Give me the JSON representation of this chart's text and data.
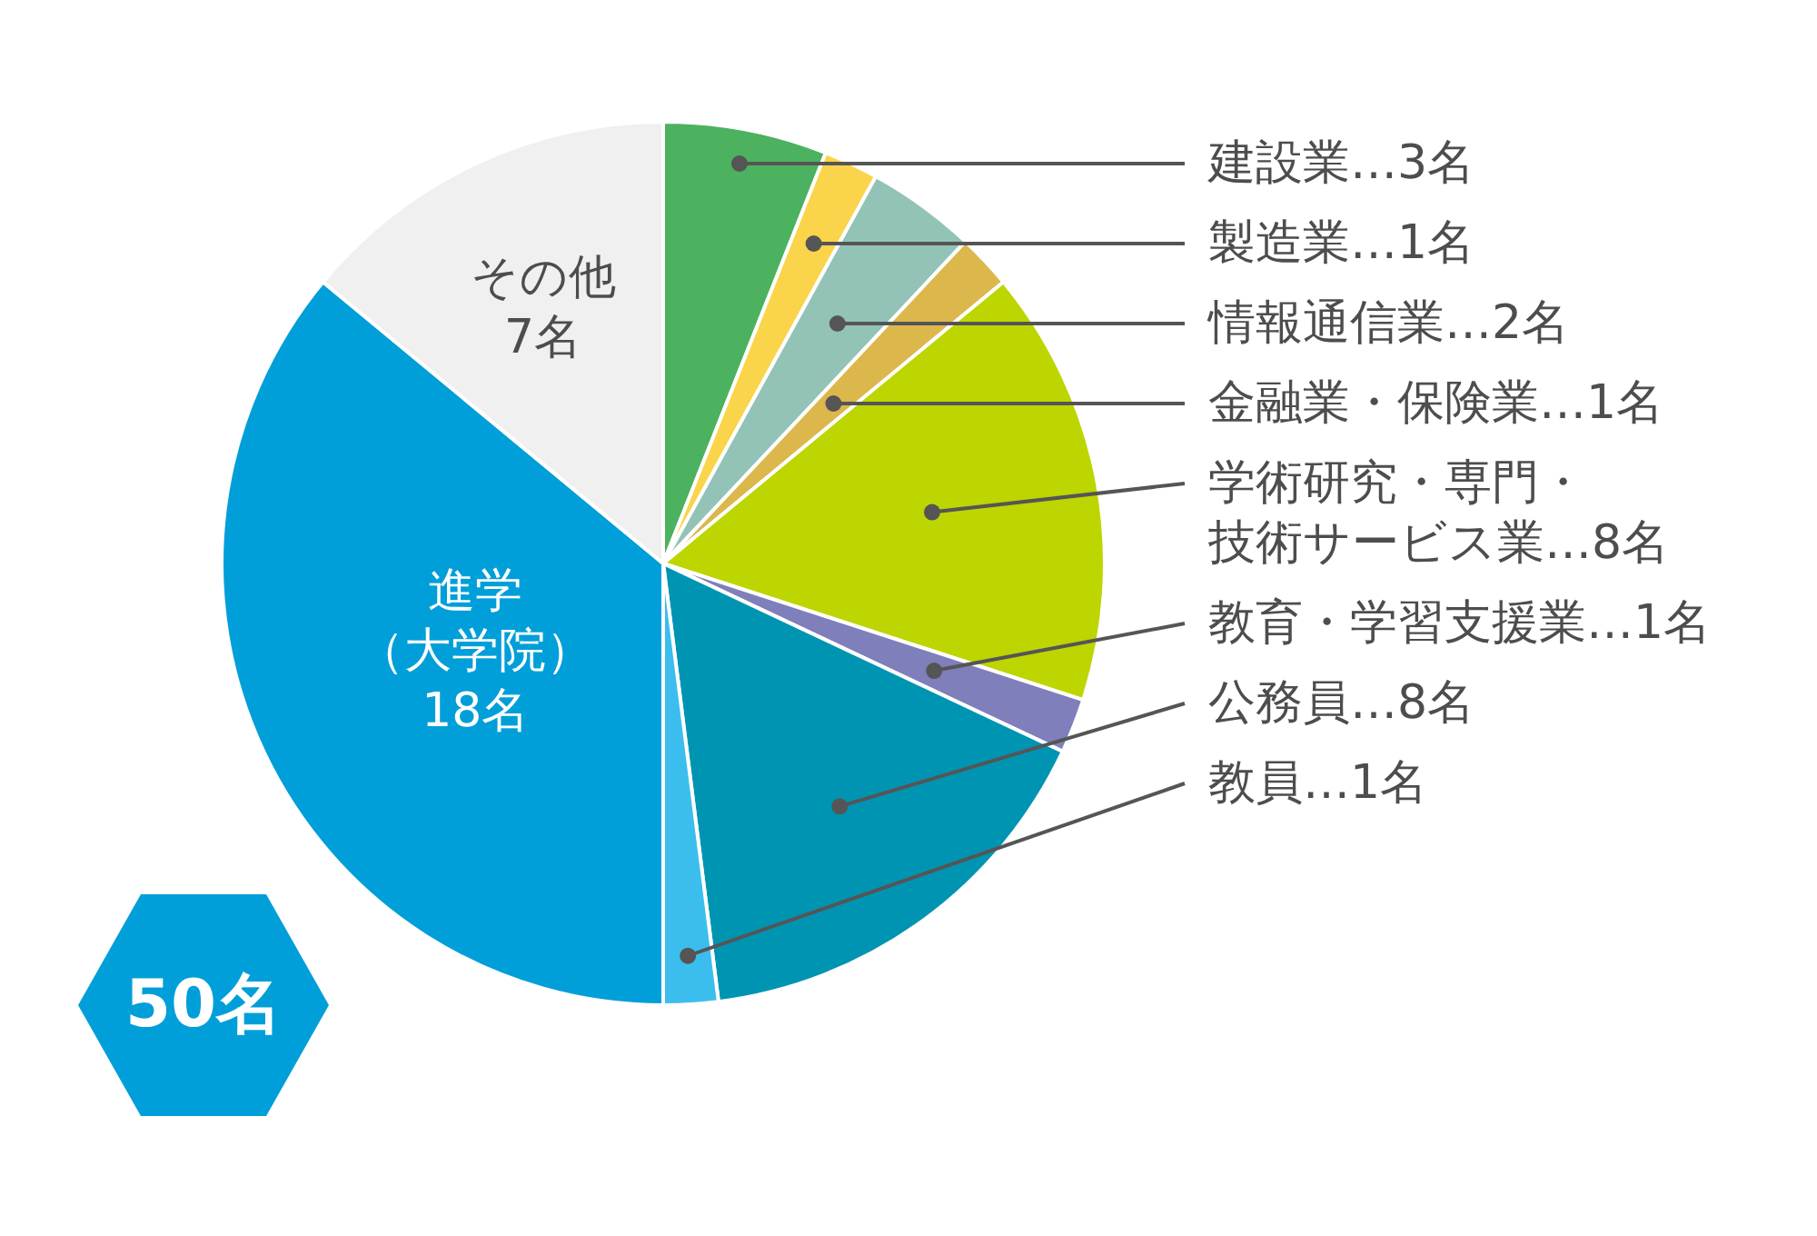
{
  "chart_data": {
    "type": "pie",
    "categories": [
      "建設業",
      "製造業",
      "情報通信業",
      "金融業・保険業",
      "学術研究・専門・技術サービス業",
      "教育・学習支援業",
      "公務員",
      "教員",
      "進学（大学院）",
      "その他"
    ],
    "values": [
      3,
      1,
      2,
      1,
      8,
      1,
      8,
      1,
      18,
      7
    ],
    "value_labels": [
      "…3名",
      "…1名",
      "…2名",
      "…1名",
      "…8名",
      "…1名",
      "…8名",
      "…1名",
      "18名",
      "7名"
    ],
    "colors": [
      "#4cb25f",
      "#fad44a",
      "#92c3b6",
      "#dcb74c",
      "#bdd500",
      "#7f7fbb",
      "#0094b3",
      "#3bbeee",
      "#009fd9",
      "#f0f0f0"
    ],
    "annotations": [
      "50名"
    ]
  }
}
